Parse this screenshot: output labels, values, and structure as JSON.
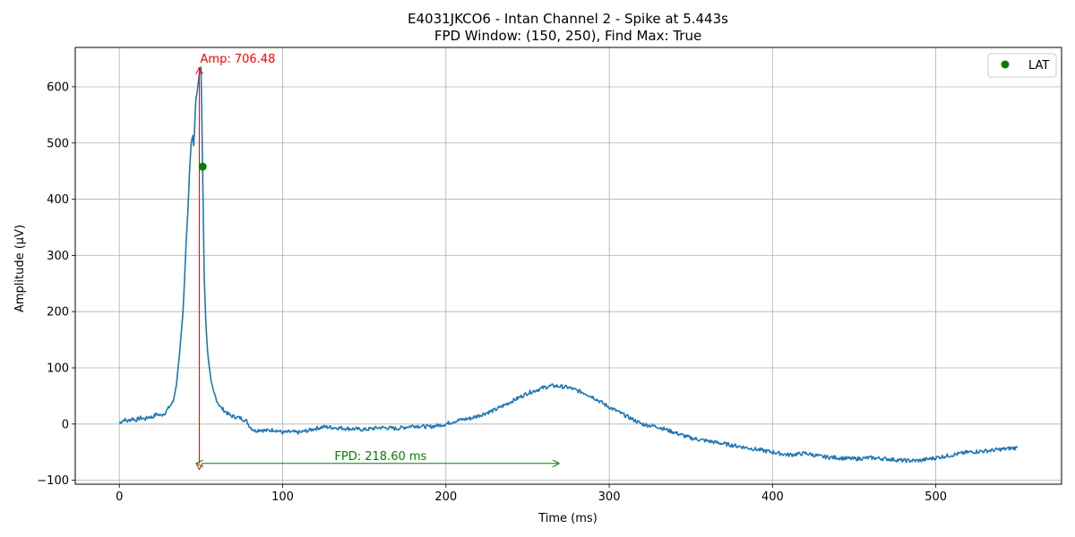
{
  "chart_data": {
    "type": "line",
    "title": "E4031JKCO6 - Intan Channel 2 - Spike at 5.443s",
    "subtitle": "FPD Window: (150, 250), Find Max: True",
    "xlabel": "Time (ms)",
    "ylabel": "Amplitude (µV)",
    "xlim": [
      -27,
      577
    ],
    "ylim": [
      -107,
      670
    ],
    "xticks": [
      0,
      100,
      200,
      300,
      400,
      500
    ],
    "yticks": [
      -100,
      0,
      100,
      200,
      300,
      400,
      500,
      600
    ],
    "grid": true,
    "legend_position": "top-right",
    "colors": {
      "signal": "#1f77b4",
      "lat": "#008000",
      "amp": "#ff0000",
      "fpd": "#008000",
      "grid": "#b0b0b0"
    },
    "series": [
      {
        "x": [
          0,
          3,
          5,
          8,
          10,
          13,
          16,
          18,
          20,
          23,
          25,
          28,
          30,
          33,
          35,
          37,
          39,
          40,
          41,
          42,
          43,
          44,
          45,
          45.5,
          46,
          46.5,
          47,
          48,
          49,
          50,
          51,
          52,
          53,
          54,
          55,
          56,
          58,
          60,
          62,
          65,
          68,
          72,
          75,
          78,
          80,
          83,
          86,
          90,
          95,
          100,
          105,
          110,
          115,
          120,
          125,
          130,
          140,
          150,
          160,
          170,
          180,
          190,
          200,
          205,
          210,
          215,
          220,
          230,
          240,
          250,
          255,
          260,
          265,
          270,
          275,
          280,
          285,
          290,
          300,
          310,
          320,
          330,
          340,
          350,
          360,
          370,
          380,
          390,
          400,
          410,
          420,
          430,
          440,
          450,
          460,
          470,
          480,
          490,
          500,
          510,
          520,
          530,
          540,
          550
        ],
        "y": [
          2,
          8,
          5,
          10,
          7,
          11,
          9,
          13,
          12,
          18,
          15,
          20,
          28,
          40,
          70,
          130,
          200,
          260,
          330,
          380,
          450,
          500,
          515,
          495,
          520,
          560,
          580,
          600,
          620,
          635,
          450,
          260,
          180,
          130,
          100,
          80,
          55,
          40,
          30,
          22,
          15,
          12,
          10,
          5,
          -5,
          -12,
          -10,
          -12,
          -10,
          -15,
          -14,
          -15,
          -12,
          -8,
          -5,
          -6,
          -8,
          -10,
          -6,
          -8,
          -3,
          -5,
          0,
          5,
          8,
          10,
          15,
          25,
          40,
          55,
          60,
          65,
          68,
          67,
          65,
          60,
          55,
          48,
          30,
          15,
          0,
          -5,
          -15,
          -25,
          -30,
          -35,
          -40,
          -45,
          -50,
          -55,
          -52,
          -58,
          -60,
          -62,
          -60,
          -62,
          -65,
          -65,
          -60,
          -55,
          -50,
          -48,
          -45,
          -42
        ]
      }
    ],
    "markers": [
      {
        "label": "LAT",
        "x": 51,
        "y": 458
      }
    ],
    "annotations": {
      "amp": {
        "label": "Amp: 706.48",
        "x": 49,
        "y_top": 633,
        "y_bottom": -70
      },
      "fpd": {
        "label": "FPD: 218.60 ms",
        "x_start": 51,
        "x_end": 269,
        "y": -70
      }
    }
  }
}
